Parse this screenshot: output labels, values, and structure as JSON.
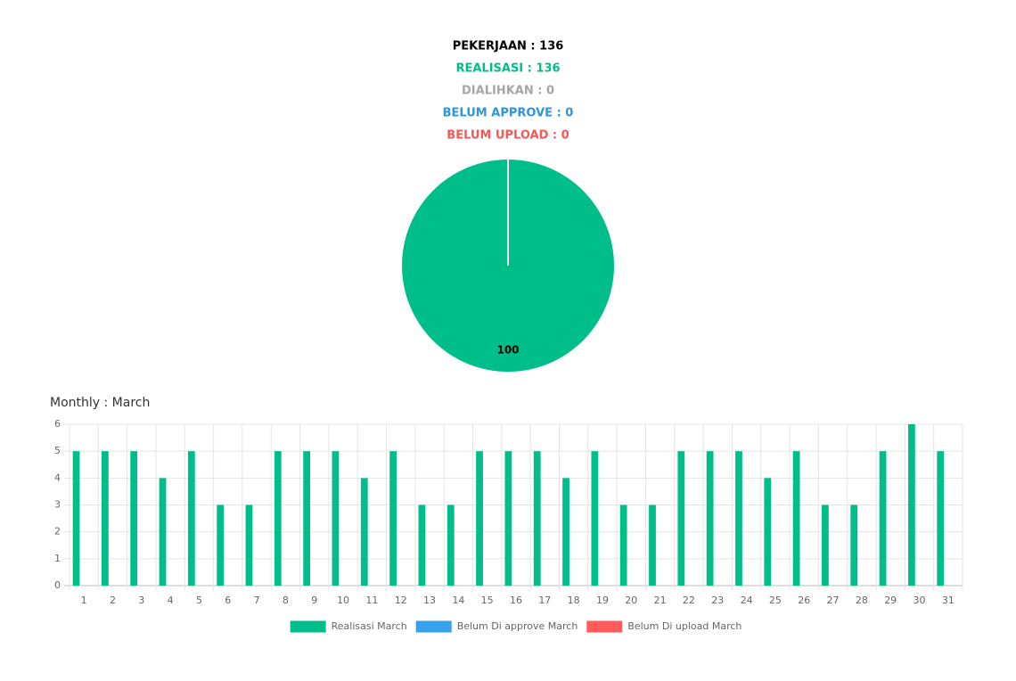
{
  "summary": [
    {
      "text": "PEKERJAAN : 136",
      "color": "#000000"
    },
    {
      "text": "REALISASI : 136",
      "color": "#00be8a"
    },
    {
      "text": "DIALIHKAN : 0",
      "color": "#a6a6a6"
    },
    {
      "text": "BELUM APPROVE : 0",
      "color": "#2e95d8"
    },
    {
      "text": "BELUM UPLOAD : 0",
      "color": "#f25858"
    }
  ],
  "chart_data": [
    {
      "type": "pie",
      "values": [
        100
      ],
      "color": "#00be8a"
    },
    {
      "type": "bar",
      "title": "Monthly : March",
      "categories": [
        "1",
        "2",
        "3",
        "4",
        "5",
        "6",
        "7",
        "8",
        "9",
        "10",
        "11",
        "12",
        "13",
        "14",
        "15",
        "16",
        "17",
        "18",
        "19",
        "20",
        "21",
        "22",
        "23",
        "24",
        "25",
        "26",
        "27",
        "28",
        "29",
        "30",
        "31"
      ],
      "series": [
        {
          "name": "Realisasi March",
          "color": "#00be8a",
          "values": [
            5,
            5,
            5,
            4,
            5,
            3,
            3,
            5,
            5,
            5,
            4,
            5,
            3,
            3,
            5,
            5,
            5,
            4,
            5,
            3,
            3,
            5,
            5,
            5,
            4,
            5,
            3,
            3,
            5,
            6,
            5
          ]
        },
        {
          "name": "Belum Di approve March",
          "color": "#36a2eb",
          "values": [
            0,
            0,
            0,
            0,
            0,
            0,
            0,
            0,
            0,
            0,
            0,
            0,
            0,
            0,
            0,
            0,
            0,
            0,
            0,
            0,
            0,
            0,
            0,
            0,
            0,
            0,
            0,
            0,
            0,
            0,
            0
          ]
        },
        {
          "name": "Belum Di upload March",
          "color": "#ff5b5b",
          "values": [
            0,
            0,
            0,
            0,
            0,
            0,
            0,
            0,
            0,
            0,
            0,
            0,
            0,
            0,
            0,
            0,
            0,
            0,
            0,
            0,
            0,
            0,
            0,
            0,
            0,
            0,
            0,
            0,
            0,
            0,
            0
          ]
        }
      ],
      "ylim": [
        0,
        6
      ],
      "yticks": [
        0,
        1,
        2,
        3,
        4,
        5,
        6
      ],
      "grid": true,
      "legend": "bottom"
    }
  ]
}
